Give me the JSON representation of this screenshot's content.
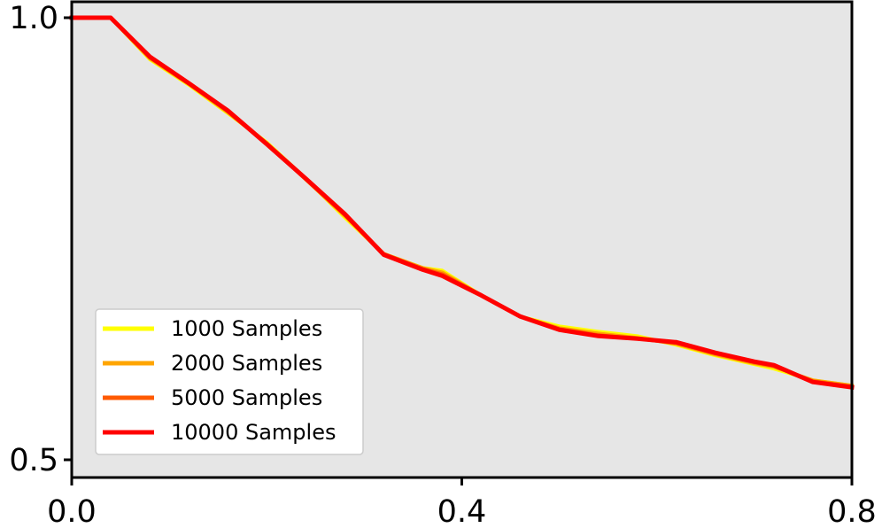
{
  "chart_data": {
    "type": "line",
    "title": "",
    "xlabel": "",
    "ylabel": "",
    "xlim": [
      0.0,
      0.8
    ],
    "ylim": [
      0.48,
      1.0
    ],
    "xticks": [
      0.0,
      0.4,
      0.8
    ],
    "yticks": [
      0.5,
      1.0
    ],
    "xtick_labels": [
      "0.0",
      "0.4",
      "0.8"
    ],
    "ytick_labels": [
      "0.5",
      "1.0"
    ],
    "grid": false,
    "legend_position": "lower-left",
    "background_color": "#e6e6e6",
    "x": [
      0.0,
      0.04,
      0.08,
      0.12,
      0.16,
      0.2,
      0.24,
      0.28,
      0.32,
      0.36,
      0.38,
      0.42,
      0.46,
      0.5,
      0.54,
      0.58,
      0.62,
      0.66,
      0.7,
      0.72,
      0.76,
      0.8
    ],
    "series": [
      {
        "name": "1000 Samples",
        "color": "#ffff00",
        "values": [
          1.0,
          1.0,
          0.953,
          0.924,
          0.892,
          0.859,
          0.818,
          0.774,
          0.733,
          0.717,
          0.714,
          0.686,
          0.662,
          0.651,
          0.645,
          0.64,
          0.63,
          0.618,
          0.608,
          0.603,
          0.59,
          0.584
        ]
      },
      {
        "name": "2000 Samples",
        "color": "#ffa500",
        "values": [
          1.0,
          1.0,
          0.954,
          0.925,
          0.893,
          0.858,
          0.817,
          0.776,
          0.733,
          0.717,
          0.712,
          0.686,
          0.662,
          0.649,
          0.643,
          0.638,
          0.631,
          0.619,
          0.609,
          0.605,
          0.59,
          0.584
        ]
      },
      {
        "name": "5000 Samples",
        "color": "#ff5a00",
        "values": [
          1.0,
          1.0,
          0.955,
          0.926,
          0.894,
          0.857,
          0.818,
          0.777,
          0.733,
          0.716,
          0.71,
          0.686,
          0.662,
          0.648,
          0.641,
          0.637,
          0.632,
          0.62,
          0.61,
          0.606,
          0.589,
          0.583
        ]
      },
      {
        "name": "10000 Samples",
        "color": "#ff0000",
        "values": [
          1.0,
          1.0,
          0.956,
          0.926,
          0.895,
          0.857,
          0.818,
          0.778,
          0.732,
          0.715,
          0.708,
          0.686,
          0.662,
          0.647,
          0.64,
          0.637,
          0.633,
          0.621,
          0.611,
          0.607,
          0.588,
          0.582
        ]
      }
    ]
  }
}
